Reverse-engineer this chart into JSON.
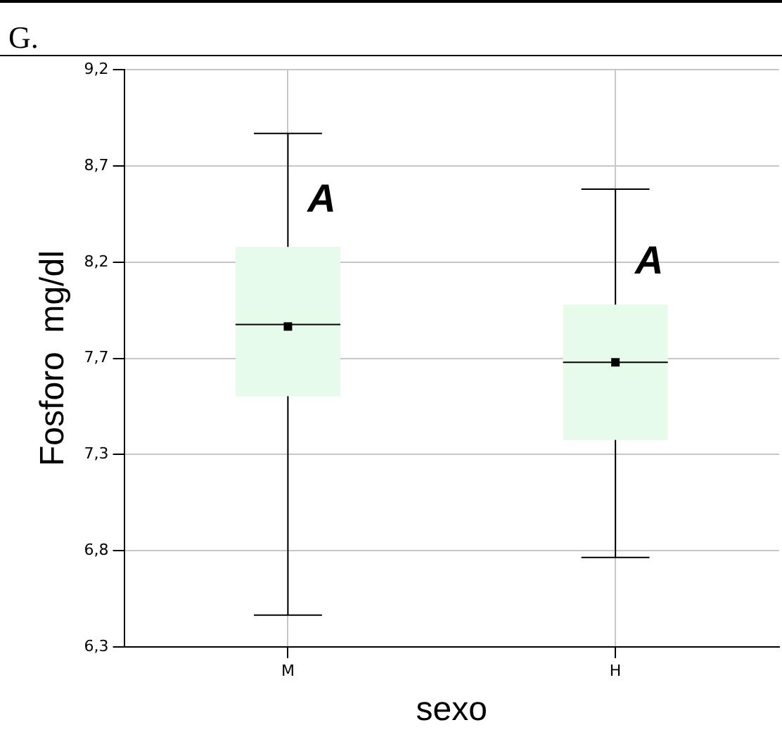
{
  "chart_data": {
    "type": "box",
    "title": "G.",
    "xlabel": "sexo",
    "ylabel": "Fosforo  mg/dl",
    "categories": [
      "M",
      "H"
    ],
    "color": "#e6fbea",
    "boxes": [
      {
        "low": 6.46,
        "q1": 7.56,
        "median": 7.92,
        "q3": 8.31,
        "high": 8.88,
        "mean": 7.91
      },
      {
        "low": 6.75,
        "q1": 7.34,
        "median": 7.73,
        "q3": 8.02,
        "high": 8.6,
        "mean": 7.73
      }
    ],
    "ylim": [
      6.3,
      9.2
    ],
    "yticks": [
      {
        "value": 6.3,
        "label": "6,3"
      },
      {
        "value": 6.783,
        "label": "6,8"
      },
      {
        "value": 7.267,
        "label": "7,3"
      },
      {
        "value": 7.75,
        "label": "7,7"
      },
      {
        "value": 8.233,
        "label": "8,2"
      },
      {
        "value": 8.717,
        "label": "8,7"
      },
      {
        "value": 9.2,
        "label": "9,2"
      }
    ],
    "grid": true,
    "annotations": [
      {
        "text": "A",
        "x": "M",
        "y": 8.54
      },
      {
        "text": "A",
        "x": "H",
        "y": 8.23
      }
    ]
  }
}
